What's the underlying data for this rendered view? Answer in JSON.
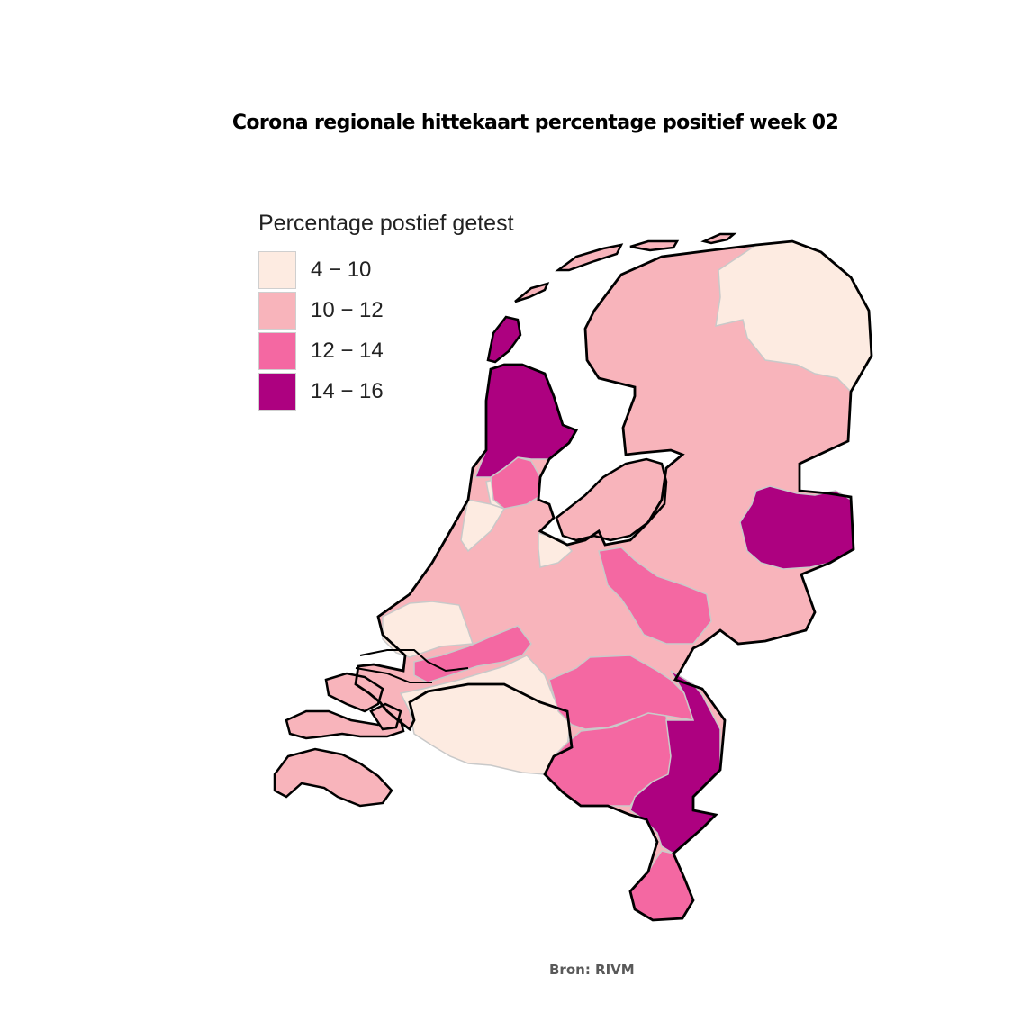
{
  "title": "Corona regionale hittekaart percentage positief week 02",
  "source": "Bron: RIVM",
  "legend": {
    "title": "Percentage postief getest",
    "items": [
      {
        "label": "4 − 10",
        "color": "#fdebe1"
      },
      {
        "label": "10 − 12",
        "color": "#f8b4bb"
      },
      {
        "label": "12 − 14",
        "color": "#f468a2"
      },
      {
        "label": "14 − 16",
        "color": "#ad0180"
      }
    ]
  },
  "colors": {
    "outline": "#000000",
    "region_border": "#c9c9c9",
    "background": "#ffffff"
  }
}
